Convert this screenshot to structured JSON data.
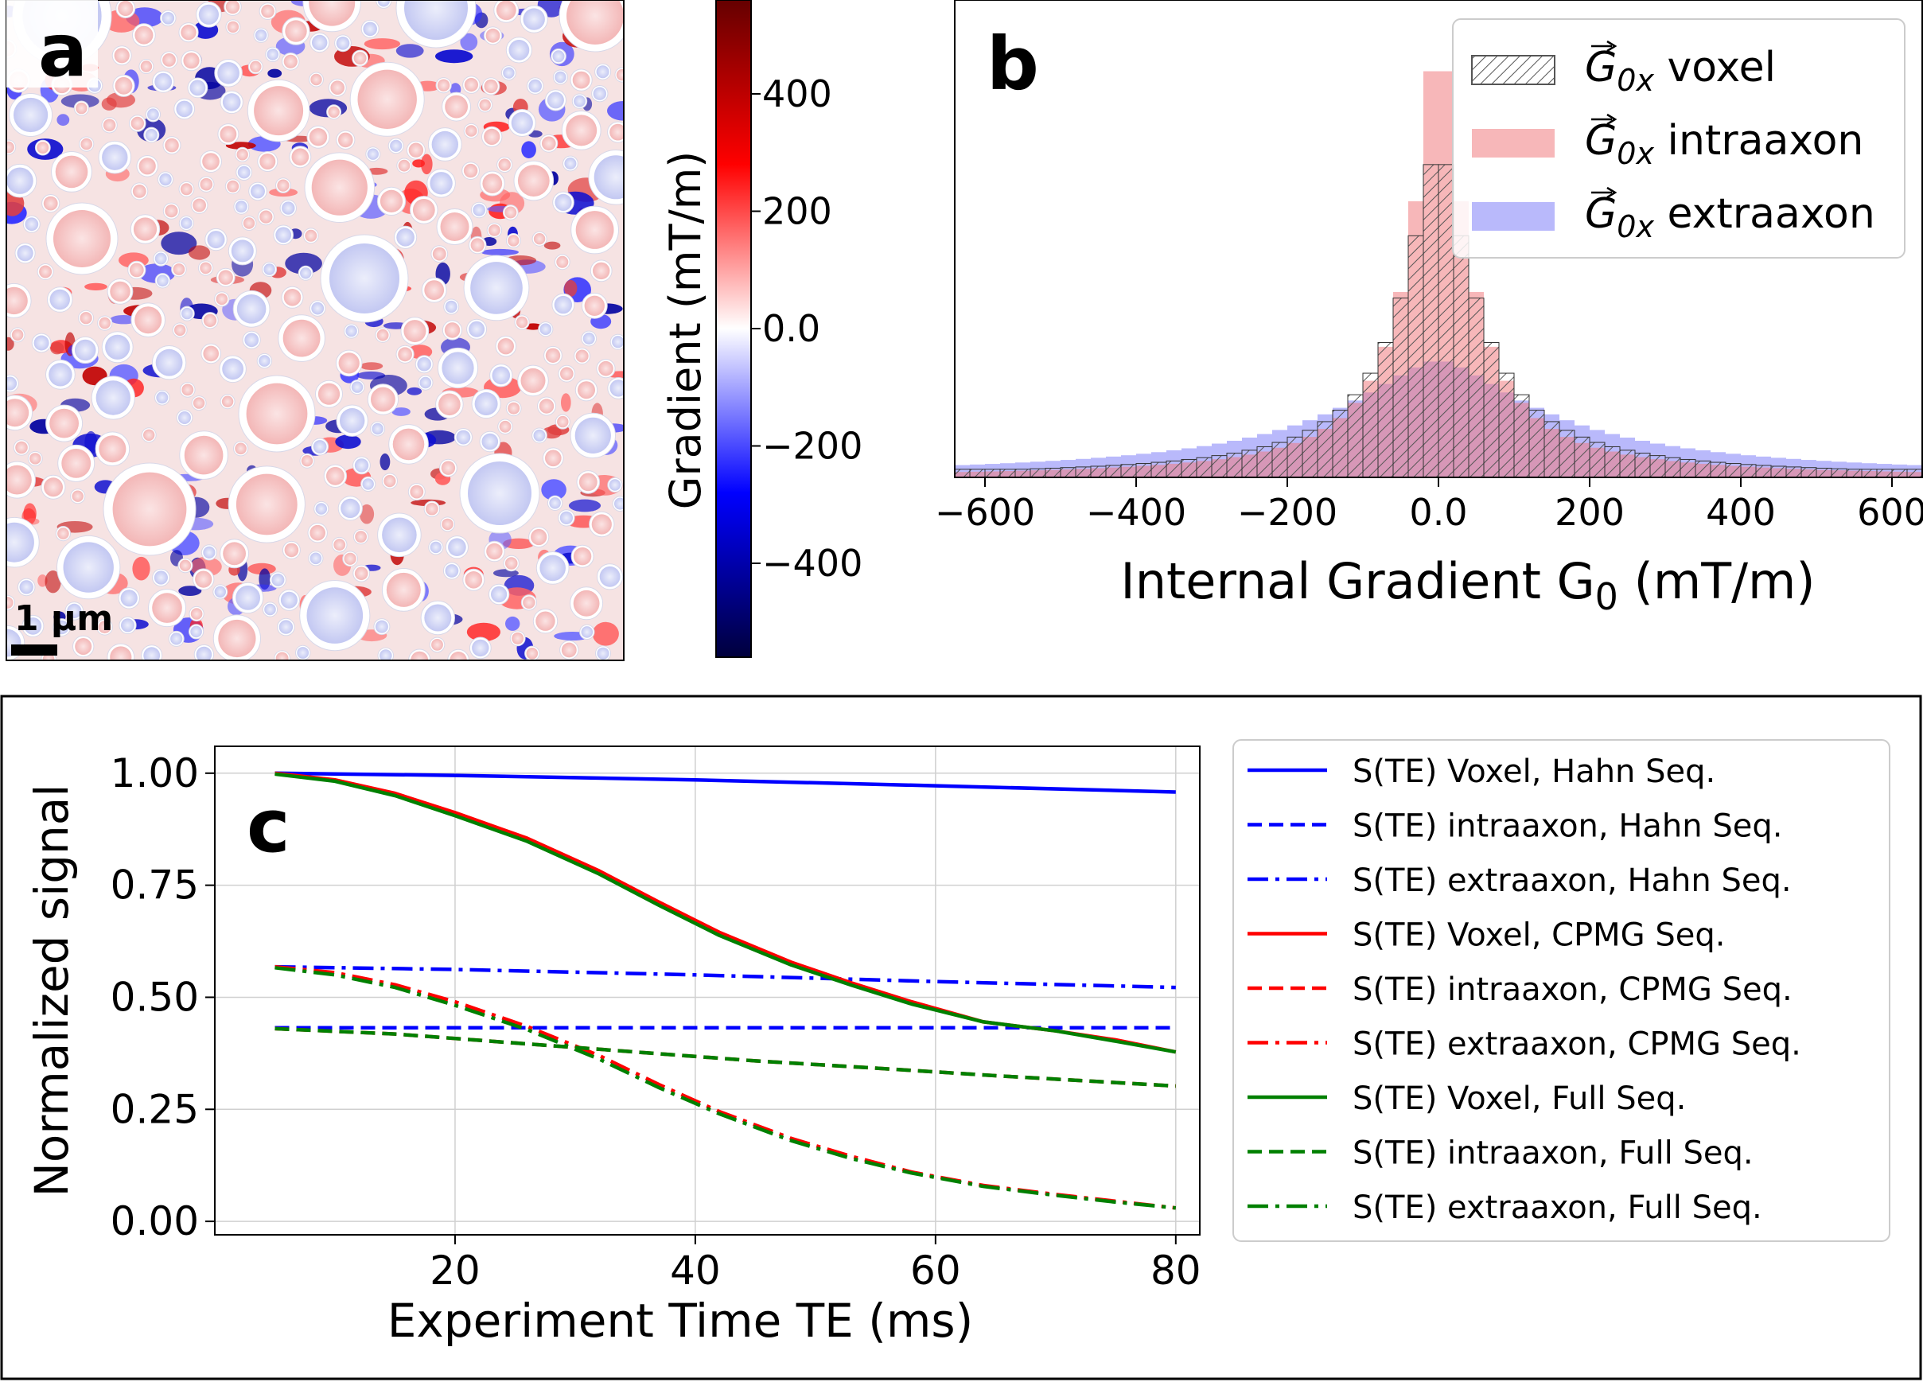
{
  "panels": {
    "a": {
      "letter": "a",
      "scale_bar_label": "1 µm",
      "colorbar_label": "Gradient (mT/m)",
      "colorbar_ticks": [
        {
          "value": 400,
          "label": "400"
        },
        {
          "value": 200,
          "label": "200"
        },
        {
          "value": 0,
          "label": "0.0"
        },
        {
          "value": -200,
          "label": "−200"
        },
        {
          "value": -400,
          "label": "−400"
        }
      ]
    },
    "b": {
      "letter": "b"
    },
    "c": {
      "letter": "c"
    }
  },
  "chart_data": [
    {
      "type": "heatmap",
      "colorscale": [
        "#00003c",
        "#0000ff",
        "#ffffff",
        "#ff0000",
        "#650000"
      ],
      "zlim": [
        -560,
        560
      ],
      "colorbar_label": "Gradient (mT/m)"
    },
    {
      "type": "histogram",
      "xlabel_main": "Internal Gradient G",
      "xlabel_sub": "0",
      "xlabel_unit": " (mT/m)",
      "xlim": [
        -640,
        640
      ],
      "ylim": [
        0,
        1.0
      ],
      "xticks": [
        {
          "value": -600,
          "label": "−600"
        },
        {
          "value": -400,
          "label": "−400"
        },
        {
          "value": -200,
          "label": "−200"
        },
        {
          "value": 0,
          "label": "0.0"
        },
        {
          "value": 200,
          "label": "200"
        },
        {
          "value": 400,
          "label": "400"
        },
        {
          "value": 600,
          "label": "600"
        }
      ],
      "legend_position": "top-right",
      "series": [
        {
          "name": "voxel",
          "name_math": "G0x",
          "style": "hatch",
          "color": "#555555",
          "peak": 0.74,
          "width": 55
        },
        {
          "name": "intraaxon",
          "name_math": "G0x",
          "style": "fill",
          "color": "#f07c80",
          "peak": 1.0,
          "width": 40
        },
        {
          "name": "extraaxon",
          "name_math": "G0x",
          "style": "fill",
          "color": "#8080f8",
          "peak": 0.26,
          "width": 165
        }
      ]
    },
    {
      "type": "line",
      "xlabel": "Experiment Time TE (ms)",
      "ylabel": "Normalized signal",
      "xlim": [
        0,
        82
      ],
      "ylim": [
        -0.03,
        1.06
      ],
      "xticks": [
        20,
        40,
        60,
        80
      ],
      "yticks": [
        {
          "value": 0,
          "label": "0.00"
        },
        {
          "value": 0.25,
          "label": "0.25"
        },
        {
          "value": 0.5,
          "label": "0.50"
        },
        {
          "value": 0.75,
          "label": "0.75"
        },
        {
          "value": 1.0,
          "label": "1.00"
        }
      ],
      "grid": true,
      "legend_position": "outside-right",
      "series": [
        {
          "name": "S(TE) Voxel, Hahn Seq.",
          "color": "#0000ff",
          "dash": "solid",
          "x": [
            5,
            20,
            40,
            60,
            80
          ],
          "y": [
            1.0,
            0.995,
            0.985,
            0.972,
            0.958
          ]
        },
        {
          "name": "S(TE) intraaxon, Hahn Seq.",
          "color": "#0000ff",
          "dash": "dashed",
          "x": [
            5,
            20,
            40,
            60,
            80
          ],
          "y": [
            0.432,
            0.432,
            0.432,
            0.432,
            0.432
          ]
        },
        {
          "name": "S(TE) extraaxon, Hahn Seq.",
          "color": "#0000ff",
          "dash": "dashdot",
          "x": [
            5,
            20,
            40,
            60,
            80
          ],
          "y": [
            0.568,
            0.562,
            0.55,
            0.535,
            0.522
          ]
        },
        {
          "name": "S(TE) Voxel, CPMG Seq.",
          "color": "#ff0000",
          "dash": "solid",
          "x": [
            5,
            10,
            15,
            20,
            26,
            32,
            37,
            42,
            48,
            53,
            58,
            64,
            70,
            75,
            80
          ],
          "y": [
            1.0,
            0.985,
            0.955,
            0.912,
            0.855,
            0.782,
            0.712,
            0.645,
            0.578,
            0.532,
            0.49,
            0.445,
            0.425,
            0.405,
            0.378
          ]
        },
        {
          "name": "S(TE) intraaxon, CPMG Seq.",
          "color": "#ff0000",
          "dash": "dashed",
          "x": [
            5,
            15,
            25,
            35,
            45,
            55,
            65,
            80
          ],
          "y": [
            0.43,
            0.418,
            0.398,
            0.378,
            0.358,
            0.342,
            0.325,
            0.302
          ]
        },
        {
          "name": "S(TE) extraaxon, CPMG Seq.",
          "color": "#ff0000",
          "dash": "dashdot",
          "x": [
            5,
            10,
            15,
            20,
            26,
            32,
            37,
            42,
            48,
            53,
            58,
            64,
            70,
            75,
            80
          ],
          "y": [
            0.568,
            0.555,
            0.528,
            0.49,
            0.435,
            0.37,
            0.305,
            0.245,
            0.185,
            0.145,
            0.11,
            0.08,
            0.06,
            0.045,
            0.03
          ]
        },
        {
          "name": "S(TE) Voxel, Full Seq.",
          "color": "#008000",
          "dash": "solid",
          "x": [
            5,
            10,
            15,
            20,
            26,
            32,
            37,
            42,
            48,
            53,
            58,
            64,
            70,
            75,
            80
          ],
          "y": [
            0.998,
            0.982,
            0.95,
            0.905,
            0.848,
            0.775,
            0.705,
            0.638,
            0.572,
            0.527,
            0.485,
            0.445,
            0.425,
            0.402,
            0.378
          ]
        },
        {
          "name": "S(TE) intraaxon, Full Seq.",
          "color": "#008000",
          "dash": "dashed",
          "x": [
            5,
            15,
            25,
            35,
            45,
            55,
            65,
            80
          ],
          "y": [
            0.43,
            0.418,
            0.398,
            0.378,
            0.358,
            0.342,
            0.325,
            0.302
          ]
        },
        {
          "name": "S(TE) extraaxon, Full Seq.",
          "color": "#008000",
          "dash": "dashdot",
          "x": [
            5,
            10,
            15,
            20,
            26,
            32,
            37,
            42,
            48,
            53,
            58,
            64,
            70,
            75,
            80
          ],
          "y": [
            0.566,
            0.55,
            0.522,
            0.482,
            0.428,
            0.362,
            0.298,
            0.24,
            0.18,
            0.14,
            0.108,
            0.078,
            0.058,
            0.043,
            0.03
          ]
        }
      ]
    }
  ]
}
